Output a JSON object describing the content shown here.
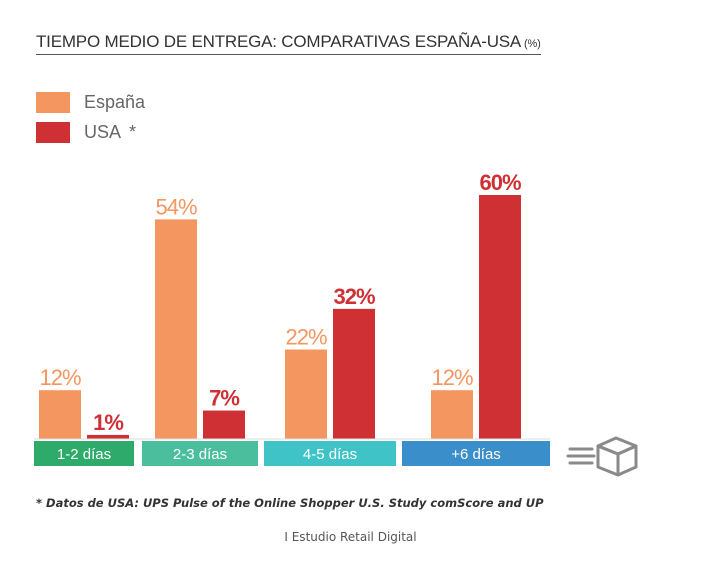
{
  "header": {
    "title": "TIEMPO MEDIO DE ENTREGA: COMPARATIVAS ESPAÑA-USA",
    "unit": "(%)"
  },
  "legend": {
    "items": [
      {
        "label": "España",
        "color": "#f4965f"
      },
      {
        "label": "USA",
        "color": "#cf3034",
        "note": "*"
      }
    ]
  },
  "chart_data": {
    "type": "bar",
    "title": "TIEMPO MEDIO DE ENTREGA: COMPARATIVAS ESPAÑA-USA (%)",
    "categories": [
      "1-2 días",
      "2-3 días",
      "4-5 días",
      "+6 días"
    ],
    "category_colors": [
      "#2eaa6a",
      "#4bbf9d",
      "#3fc3c6",
      "#3a8ec9"
    ],
    "series": [
      {
        "name": "España",
        "values": [
          12,
          54,
          22,
          12
        ],
        "labels": [
          "12%",
          "54%",
          "22%",
          "12%"
        ],
        "color": "#f4965f"
      },
      {
        "name": "USA",
        "values": [
          1,
          7,
          32,
          60
        ],
        "labels": [
          "1%",
          "7%",
          "32%",
          "60%"
        ],
        "color": "#cf3034"
      }
    ],
    "ylim": [
      0,
      60
    ],
    "grid": false,
    "legend_position": "top-left",
    "icon": "delivery-box-icon"
  },
  "footnote": "* Datos de USA: UPS Pulse of the Online Shopper U.S. Study comScore and UP",
  "source": "I Estudio Retail Digital"
}
